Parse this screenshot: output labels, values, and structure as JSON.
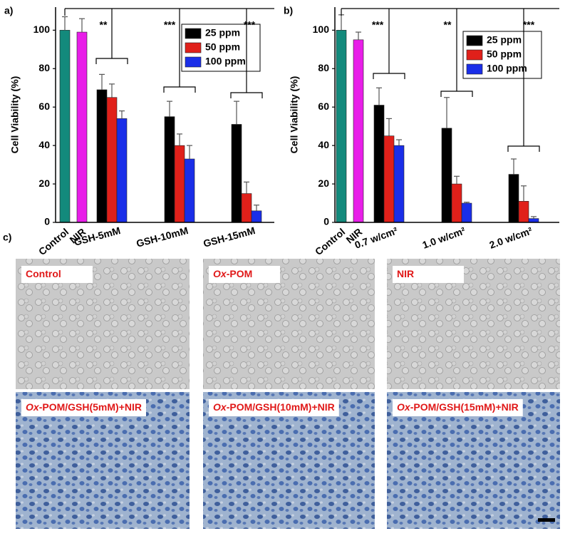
{
  "chart_data": [
    {
      "type": "bar",
      "panel_label": "a)",
      "ylabel": "Cell Viability (%)",
      "categories": [
        "Control",
        "NIR",
        "GSH-5mM",
        "GSH-10mM",
        "GSH-15mM"
      ],
      "reference": {
        "values": [
          100,
          99
        ],
        "errors": [
          7,
          7
        ],
        "colors": [
          "#138a7c",
          "#e81ee8"
        ]
      },
      "series": [
        {
          "name": "25 ppm",
          "color": "#000000",
          "values": [
            null,
            null,
            69,
            55,
            51
          ],
          "errors": [
            null,
            null,
            8,
            8,
            12
          ]
        },
        {
          "name": "50 ppm",
          "color": "#e0201a",
          "values": [
            null,
            null,
            65,
            40,
            15
          ],
          "errors": [
            null,
            null,
            7,
            6,
            6
          ]
        },
        {
          "name": "100 ppm",
          "color": "#1a2ee8",
          "values": [
            null,
            null,
            54,
            33,
            6
          ],
          "errors": [
            null,
            null,
            4,
            7,
            3
          ]
        }
      ],
      "significance": [
        "**",
        "***",
        "***"
      ],
      "ylim": [
        0,
        112
      ],
      "yticks": [
        0,
        20,
        40,
        60,
        80,
        100
      ]
    },
    {
      "type": "bar",
      "panel_label": "b)",
      "ylabel": "Cell Viability (%)",
      "categories": [
        "Control",
        "NIR",
        "0.7 w/cm²",
        "1.0 w/cm²",
        "2.0 w/cm²"
      ],
      "reference": {
        "values": [
          100,
          95
        ],
        "errors": [
          8,
          4
        ],
        "colors": [
          "#138a7c",
          "#e81ee8"
        ]
      },
      "series": [
        {
          "name": "25 ppm",
          "color": "#000000",
          "values": [
            null,
            null,
            61,
            49,
            25
          ],
          "errors": [
            null,
            null,
            9,
            16,
            8
          ]
        },
        {
          "name": "50 ppm",
          "color": "#e0201a",
          "values": [
            null,
            null,
            45,
            20,
            11
          ],
          "errors": [
            null,
            null,
            9,
            4,
            8
          ]
        },
        {
          "name": "100 ppm",
          "color": "#1a2ee8",
          "values": [
            null,
            null,
            40,
            10,
            2
          ],
          "errors": [
            null,
            null,
            3,
            0.5,
            1
          ]
        }
      ],
      "significance": [
        "***",
        "**",
        "***"
      ],
      "ylim": [
        0,
        112
      ],
      "yticks": [
        0,
        20,
        40,
        60,
        80,
        100
      ]
    }
  ],
  "images": {
    "panel_label": "c)",
    "panels": [
      {
        "label": "Control"
      },
      {
        "label_italic": "Ox",
        "label": "-POM"
      },
      {
        "label": "NIR"
      },
      {
        "label_italic": "Ox",
        "label": "-POM/GSH(5mM)+NIR"
      },
      {
        "label_italic": "Ox",
        "label": "-POM/GSH(10mM)+NIR"
      },
      {
        "label_italic": "Ox",
        "label": "-POM/GSH(15mM)+NIR"
      }
    ]
  }
}
